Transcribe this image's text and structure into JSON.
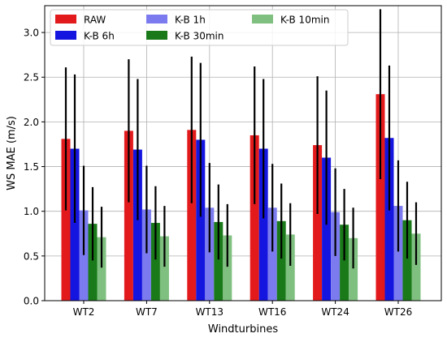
{
  "chart_data": {
    "type": "bar",
    "title": "",
    "xlabel": "Windturbines",
    "ylabel": "WS MAE (m/s)",
    "ylim": [
      0,
      3.3
    ],
    "y_ticks": [
      "0.0",
      "0.5",
      "1.0",
      "1.5",
      "2.0",
      "2.5",
      "3.0"
    ],
    "grid": true,
    "legend_position": "top-left",
    "legend_columns": 3,
    "categories": [
      "WT2",
      "WT7",
      "WT13",
      "WT16",
      "WT24",
      "WT26"
    ],
    "series": [
      {
        "name": "RAW",
        "color": "#e31a1c",
        "values": [
          1.81,
          1.9,
          1.91,
          1.85,
          1.74,
          2.31
        ],
        "error": [
          0.8,
          0.8,
          0.82,
          0.77,
          0.77,
          0.95
        ]
      },
      {
        "name": "K-B 6h",
        "color": "#1515e0",
        "values": [
          1.7,
          1.69,
          1.8,
          1.7,
          1.6,
          1.82
        ],
        "error": [
          0.83,
          0.79,
          0.86,
          0.78,
          0.75,
          0.81
        ]
      },
      {
        "name": "K-B 1h",
        "color": "#7b7bef",
        "values": [
          1.01,
          1.02,
          1.04,
          1.04,
          0.99,
          1.06
        ],
        "error": [
          0.5,
          0.49,
          0.5,
          0.49,
          0.49,
          0.51
        ]
      },
      {
        "name": "K-B 30min",
        "color": "#1a7a1a",
        "values": [
          0.86,
          0.87,
          0.88,
          0.89,
          0.85,
          0.9
        ],
        "error": [
          0.41,
          0.41,
          0.42,
          0.42,
          0.4,
          0.43
        ]
      },
      {
        "name": "K-B 10min",
        "color": "#7fbf7f",
        "values": [
          0.71,
          0.72,
          0.73,
          0.74,
          0.7,
          0.75
        ],
        "error": [
          0.34,
          0.34,
          0.35,
          0.35,
          0.34,
          0.35
        ]
      }
    ]
  }
}
